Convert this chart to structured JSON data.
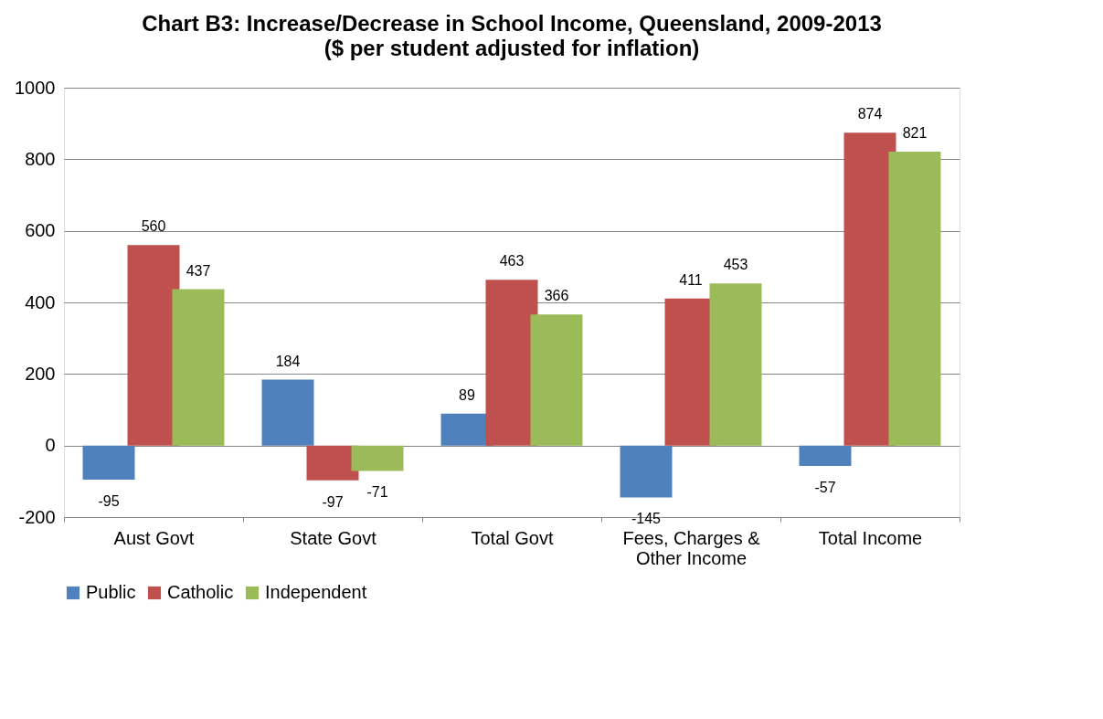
{
  "chart_data": {
    "type": "bar",
    "title": "Chart B3: Increase/Decrease in School Income, Queensland, 2009-2013",
    "subtitle": "($ per student adjusted for inflation)",
    "categories": [
      "Aust Govt",
      "State Govt",
      "Total Govt",
      "Fees, Charges & Other Income",
      "Total Income"
    ],
    "series": [
      {
        "name": "Public",
        "color": "#4f81bd",
        "values": [
          -95,
          184,
          89,
          -145,
          -57
        ]
      },
      {
        "name": "Catholic",
        "color": "#c0504d",
        "values": [
          560,
          -97,
          463,
          411,
          874
        ]
      },
      {
        "name": "Independent",
        "color": "#9bbb59",
        "values": [
          437,
          -71,
          366,
          453,
          821
        ]
      }
    ],
    "ylim": [
      -200,
      1000
    ],
    "yticks": [
      -200,
      0,
      200,
      400,
      600,
      800,
      1000
    ],
    "grid": "y",
    "legend": "bottom",
    "data_labels": true
  }
}
